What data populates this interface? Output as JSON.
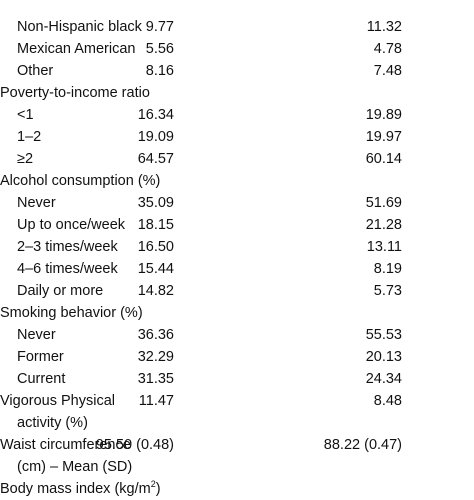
{
  "sections": [
    {
      "rows": [
        {
          "label": "Non-Hispanic black",
          "v1": "9.77",
          "v2": "11.32",
          "indent": true
        },
        {
          "label": "Mexican American",
          "v1": "5.56",
          "v2": "4.78",
          "indent": true
        },
        {
          "label": "Other",
          "v1": "8.16",
          "v2": "7.48",
          "indent": true
        }
      ]
    },
    {
      "header": "Poverty-to-income ratio",
      "rows": [
        {
          "label": "<1",
          "v1": "16.34",
          "v2": "19.89",
          "indent": true
        },
        {
          "label": "1–2",
          "v1": "19.09",
          "v2": "19.97",
          "indent": true
        },
        {
          "label": "≥2",
          "v1": "64.57",
          "v2": "60.14",
          "indent": true
        }
      ]
    },
    {
      "header": "Alcohol consumption (%)",
      "rows": [
        {
          "label": "Never",
          "v1": "35.09",
          "v2": "51.69",
          "indent": true
        },
        {
          "label": "Up to once/week",
          "v1": "18.15",
          "v2": "21.28",
          "indent": true
        },
        {
          "label": "2–3 times/week",
          "v1": "16.50",
          "v2": "13.11",
          "indent": true
        },
        {
          "label": "4–6 times/week",
          "v1": "15.44",
          "v2": "8.19",
          "indent": true
        },
        {
          "label": "Daily or more",
          "v1": "14.82",
          "v2": "5.73",
          "indent": true
        }
      ]
    },
    {
      "header": "Smoking behavior (%)",
      "rows": [
        {
          "label": "Never",
          "v1": "36.36",
          "v2": "55.53",
          "indent": true
        },
        {
          "label": "Former",
          "v1": "32.29",
          "v2": "20.13",
          "indent": true
        },
        {
          "label": "Current",
          "v1": "31.35",
          "v2": "24.34",
          "indent": true
        }
      ]
    },
    {
      "rows": [
        {
          "label": "Vigorous Physical",
          "v1": "11.47",
          "v2": "8.48",
          "indent": false
        },
        {
          "label": "activity (%)",
          "v1": "",
          "v2": "",
          "indent": true
        }
      ]
    },
    {
      "rows": [
        {
          "label": "Waist circumference",
          "v1": "95.50 (0.48)",
          "v2": "88.22 (0.47)",
          "indent": false
        },
        {
          "label": "(cm) – Mean (SD)",
          "v1": "",
          "v2": "",
          "indent": true
        }
      ]
    }
  ],
  "bottom_partial_label": "Body mass index (kg/m",
  "bottom_partial_sup": "2",
  "bottom_partial_close": ")"
}
